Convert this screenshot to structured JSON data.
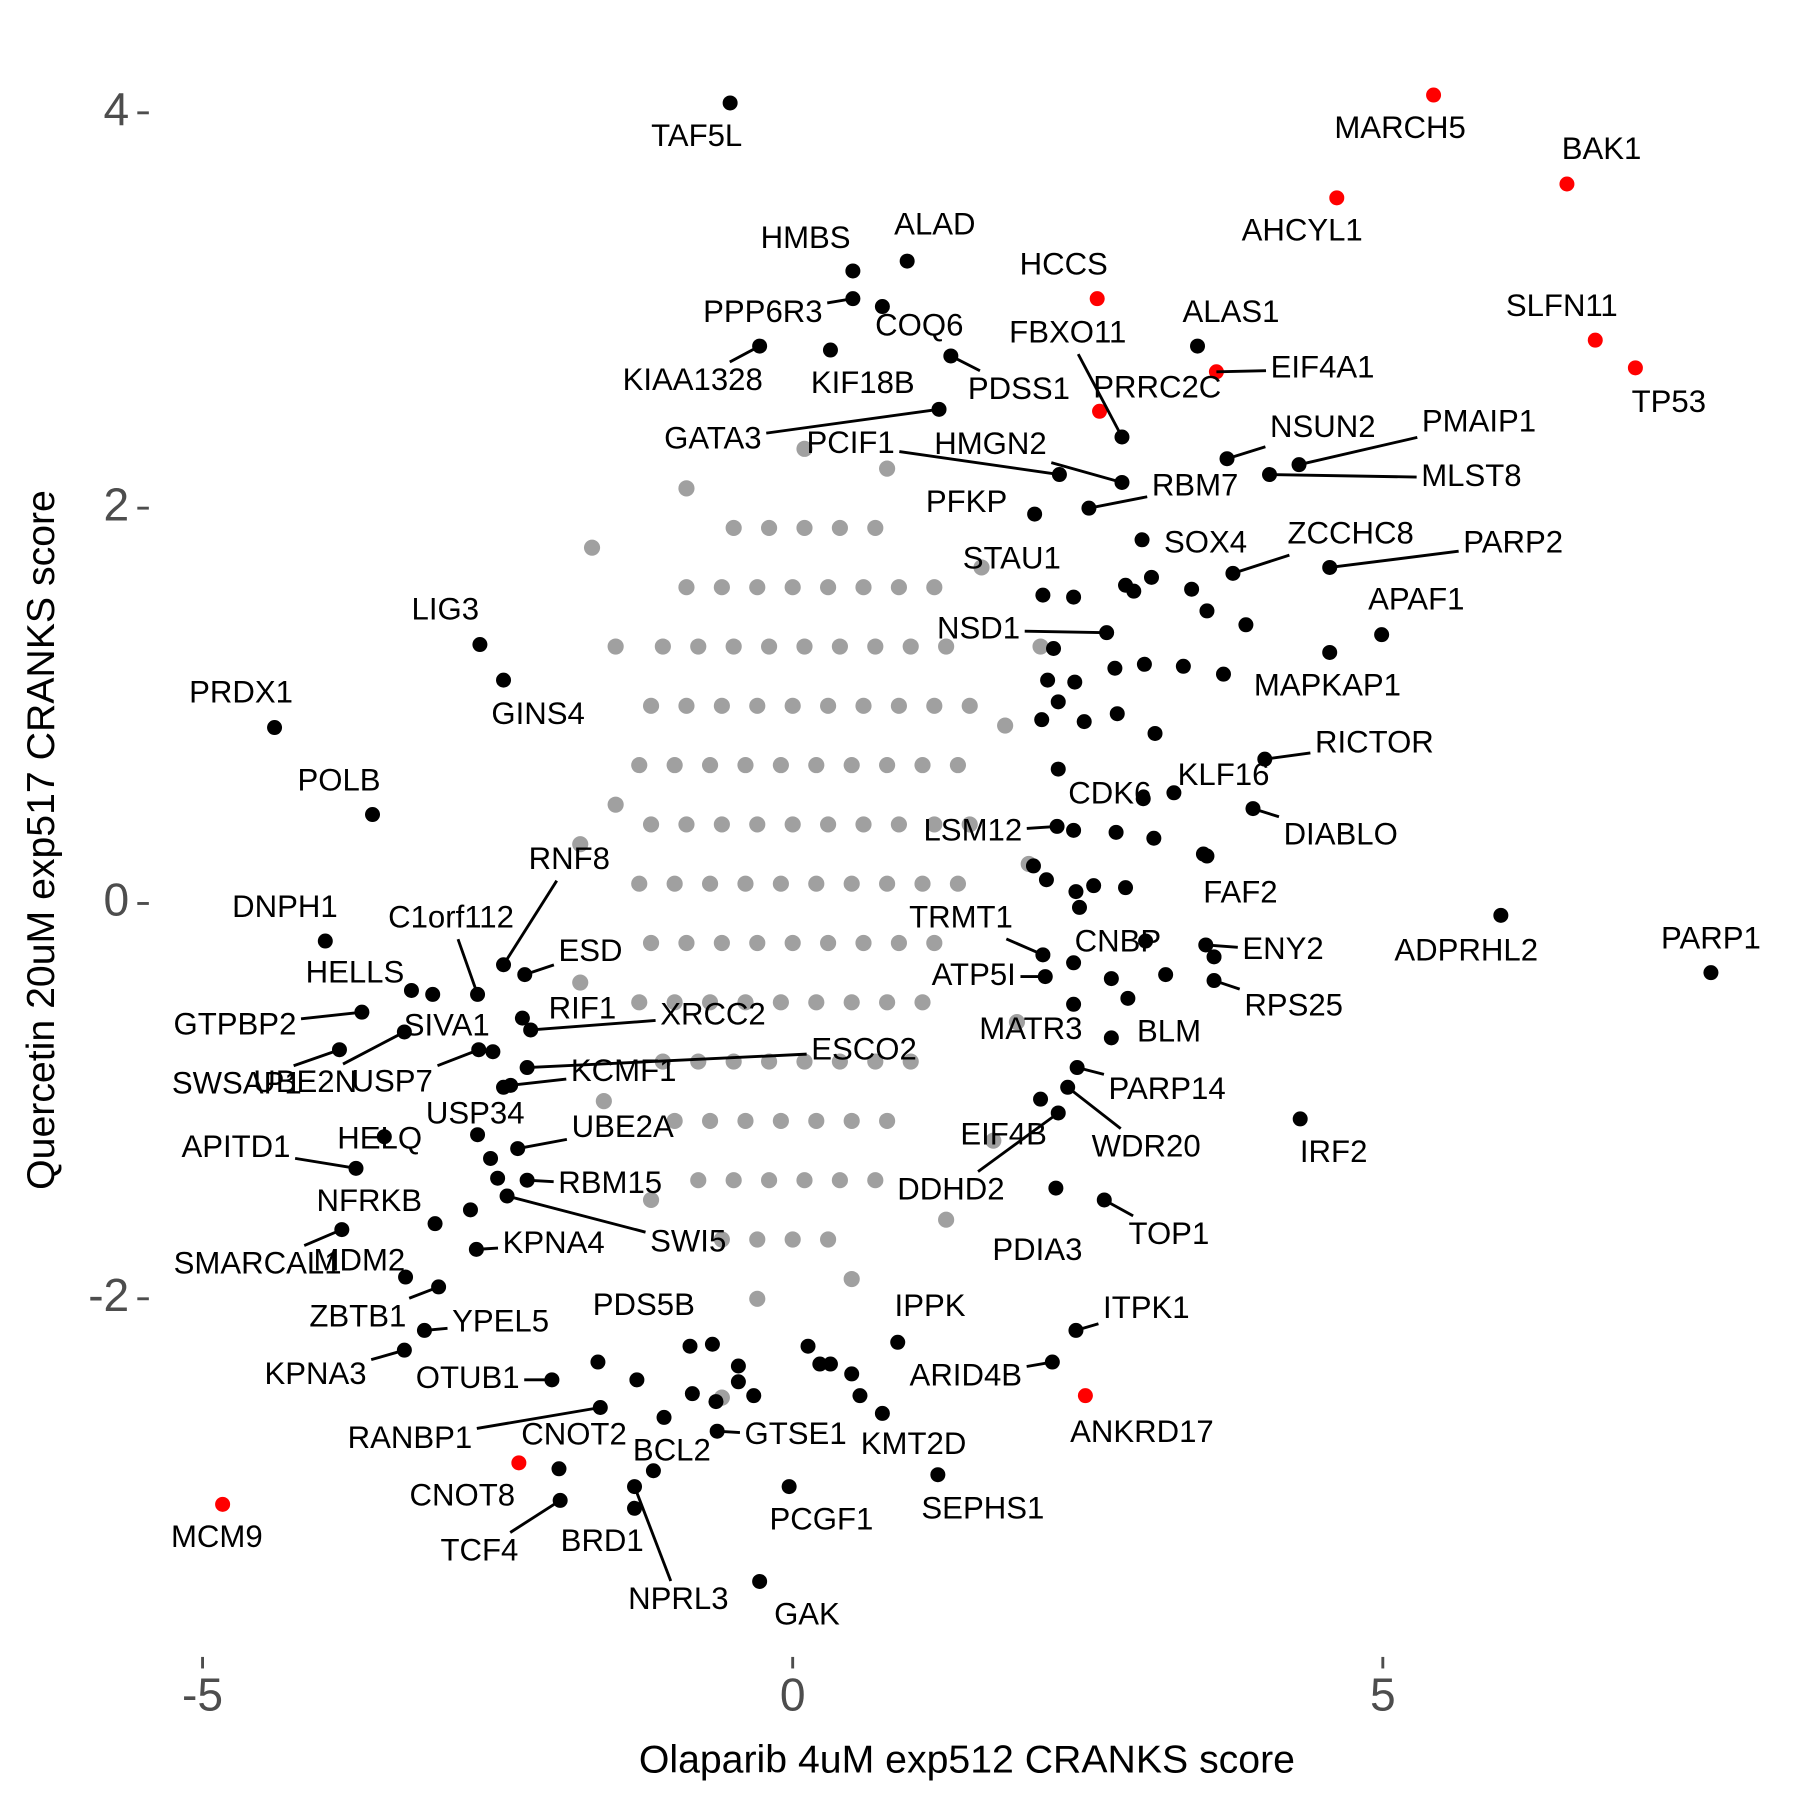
{
  "chart_data": {
    "type": "scatter",
    "xlabel": "Olaparib 4uM exp512 CRANKS score",
    "ylabel": "Quercetin 20uM exp517 CRANKS score",
    "xlim": [
      -5.5,
      8.3
    ],
    "ylim": [
      -3.75,
      4.3
    ],
    "xticks": [
      -5,
      0,
      5
    ],
    "yticks": [
      -2,
      0,
      2,
      4
    ],
    "series": [
      {
        "color": "#a0a0a0",
        "x": [
          -0.5,
          -0.2,
          0.1,
          0.4,
          0.7,
          -0.9,
          -0.6,
          -0.3,
          0,
          0.3,
          0.6,
          0.9,
          1.2,
          -1.1,
          -0.8,
          -0.5,
          -0.2,
          0.1,
          0.4,
          0.7,
          1.0,
          1.3,
          -1.2,
          -0.9,
          -0.6,
          -0.3,
          0,
          0.3,
          0.6,
          0.9,
          1.2,
          1.5,
          -1.3,
          -1.0,
          -0.7,
          -0.4,
          -0.1,
          0.2,
          0.5,
          0.8,
          1.1,
          1.4,
          -1.2,
          -0.9,
          -0.6,
          -0.3,
          0,
          0.3,
          0.6,
          0.9,
          1.2,
          1.5,
          -1.3,
          -1.0,
          -0.7,
          -0.4,
          -0.1,
          0.2,
          0.5,
          0.8,
          1.1,
          1.4,
          -1.2,
          -0.9,
          -0.6,
          -0.3,
          0,
          0.3,
          0.6,
          0.9,
          1.2,
          -1.3,
          -1.0,
          -0.7,
          -0.4,
          -0.1,
          0.2,
          0.5,
          0.8,
          1.1,
          -1.1,
          -0.8,
          -0.5,
          -0.2,
          0.1,
          0.4,
          0.7,
          1.0,
          -1.0,
          -0.7,
          -0.4,
          -0.1,
          0.2,
          0.5,
          0.8,
          -0.8,
          -0.5,
          -0.2,
          0.1,
          0.4,
          0.7,
          -0.6,
          -0.3,
          0,
          0.3,
          -1.7,
          -1.5,
          -1.8,
          -1.6,
          1.8,
          2.0,
          1.9,
          1.6,
          -0.9,
          0.8,
          -0.3,
          0.5,
          -0.6,
          -1.5,
          1.7,
          0.1,
          -1.8,
          2.1,
          -1.2,
          1.3
        ],
        "y": [
          1.9,
          1.9,
          1.9,
          1.9,
          1.9,
          1.6,
          1.6,
          1.6,
          1.6,
          1.6,
          1.6,
          1.6,
          1.6,
          1.3,
          1.3,
          1.3,
          1.3,
          1.3,
          1.3,
          1.3,
          1.3,
          1.3,
          1.0,
          1.0,
          1.0,
          1.0,
          1.0,
          1.0,
          1.0,
          1.0,
          1.0,
          1.0,
          0.7,
          0.7,
          0.7,
          0.7,
          0.7,
          0.7,
          0.7,
          0.7,
          0.7,
          0.7,
          0.4,
          0.4,
          0.4,
          0.4,
          0.4,
          0.4,
          0.4,
          0.4,
          0.4,
          0.4,
          0.1,
          0.1,
          0.1,
          0.1,
          0.1,
          0.1,
          0.1,
          0.1,
          0.1,
          0.1,
          -0.2,
          -0.2,
          -0.2,
          -0.2,
          -0.2,
          -0.2,
          -0.2,
          -0.2,
          -0.2,
          -0.5,
          -0.5,
          -0.5,
          -0.5,
          -0.5,
          -0.5,
          -0.5,
          -0.5,
          -0.5,
          -0.8,
          -0.8,
          -0.8,
          -0.8,
          -0.8,
          -0.8,
          -0.8,
          -0.8,
          -1.1,
          -1.1,
          -1.1,
          -1.1,
          -1.1,
          -1.1,
          -1.1,
          -1.4,
          -1.4,
          -1.4,
          -1.4,
          -1.4,
          -1.4,
          -1.7,
          -1.7,
          -1.7,
          -1.7,
          1.8,
          0.5,
          -0.4,
          -1.0,
          0.9,
          0.2,
          -0.6,
          1.7,
          2.1,
          2.2,
          -2.0,
          -1.9,
          -2.5,
          1.3,
          -1.2,
          2.3,
          0.3,
          1.3,
          -1.5,
          -1.6
        ]
      },
      {
        "color": "#000000",
        "x": [
          2.38,
          2.82,
          2.89,
          3.04,
          3.38,
          3.51,
          3.84,
          2.21,
          2.73,
          2.98,
          3.31,
          3.65,
          2.16,
          2.39,
          2.25,
          2.47,
          2.75,
          3.07,
          2.11,
          2.25,
          2.38,
          2.74,
          3.06,
          2.04,
          2.15,
          2.4,
          2.55,
          2.82,
          3.48,
          2.43,
          2.7,
          2.84,
          3.16,
          3.57,
          2.38,
          -3.05,
          -2.56,
          -2.73,
          -2.5,
          -2.45,
          -0.68,
          -0.46,
          -0.46,
          -0.33,
          0.13,
          0.23,
          0.32,
          0.5,
          0.57,
          -0.85,
          -1.09,
          -0.65,
          -1.65,
          -1.32
        ],
        "y": [
          1.55,
          1.61,
          1.58,
          1.65,
          1.59,
          1.48,
          1.41,
          1.29,
          1.19,
          1.21,
          1.2,
          1.16,
          1.13,
          1.12,
          1.02,
          0.92,
          0.96,
          0.86,
          0.93,
          0.68,
          0.37,
          0.36,
          0.33,
          0.19,
          0.12,
          0.06,
          0.09,
          0.08,
          0.25,
          -0.02,
          -0.38,
          -0.48,
          -0.36,
          -0.27,
          -0.3,
          -0.46,
          -1.29,
          -1.55,
          -1.39,
          -0.93,
          -2.23,
          -2.34,
          -2.42,
          -2.49,
          -2.24,
          -2.33,
          -2.33,
          -2.38,
          -2.49,
          -2.48,
          -2.6,
          -2.52,
          -2.32,
          -2.41
        ]
      },
      {
        "color": "#000000",
        "labels": [
          "TAF5L",
          "HMBS",
          "ALAD",
          "PPP6R3",
          "COQ6",
          "KIAA1328",
          "KIF18B",
          "PDSS1",
          "ALAS1",
          "FBXO11",
          "GATA3",
          "PCIF1",
          "HMGN2",
          "NSUN2",
          "PMAIP1",
          "MLST8",
          "RBM7",
          "PFKP",
          "SOX4",
          "ZCCHC8",
          "PARP2",
          "STAU1",
          "APAF1",
          "NSD1",
          "MAPKAP1",
          "RICTOR",
          "KLF16",
          "DIABLO",
          "CDK6",
          "LSM12",
          "FAF2",
          "ENY2",
          "RPS25",
          "ADPRHL2",
          "PARP1",
          "TRMT1",
          "CNBP",
          "ATP5I",
          "MATR3",
          "BLM",
          "PARP14",
          "WDR20",
          "IRF2",
          "EIF4B",
          "DDHD2",
          "TOP1",
          "PDIA3",
          "ITPK1",
          "IPPK",
          "ARID4B",
          "KMT2D",
          "SEPHS1",
          "GTSE1",
          "PCGF1",
          "GAK",
          "BCL2",
          "NPRL3",
          "BRD1",
          "TCF4",
          "CNOT2",
          "RANBP1",
          "OTUB1",
          "PDS5B",
          "YPEL5",
          "KPNA3",
          "ZBTB1",
          "MDM2",
          "SMARCAL1",
          "NFRKB",
          "KPNA4",
          "SWI5",
          "RBM15",
          "UBE2A",
          "HELQ",
          "APITD1",
          "USP34",
          "USP7",
          "SWSAP1",
          "UBE2N",
          "GTPBP2",
          "SIVA1",
          "HELLS",
          "C1orf112",
          "RNF8",
          "ESD",
          "RIF1",
          "XRCC2",
          "ESCO2",
          "KCMF1",
          "DNPH1",
          "POLB",
          "PRDX1",
          "LIG3",
          "GINS4"
        ],
        "x": [
          -0.53,
          0.51,
          0.97,
          0.51,
          0.76,
          -0.28,
          0.32,
          1.34,
          3.43,
          2.79,
          1.24,
          2.26,
          2.79,
          3.68,
          4.29,
          4.04,
          2.51,
          2.05,
          2.96,
          3.73,
          4.55,
          2.12,
          4.99,
          2.66,
          4.55,
          4.0,
          3.23,
          3.9,
          2.97,
          2.24,
          3.51,
          3.5,
          3.57,
          6.0,
          7.78,
          2.12,
          2.99,
          2.14,
          2.38,
          2.7,
          2.41,
          2.33,
          4.3,
          2.1,
          2.25,
          2.64,
          2.23,
          2.4,
          0.89,
          2.2,
          0.76,
          1.23,
          -0.64,
          -0.03,
          -0.28,
          -1.18,
          -1.34,
          -1.34,
          -1.97,
          -1.98,
          -1.63,
          -2.04,
          -0.87,
          -3.12,
          -3.29,
          -3.0,
          -3.28,
          -3.82,
          -3.03,
          -2.68,
          -2.42,
          -2.25,
          -2.33,
          -3.46,
          -3.7,
          -2.67,
          -2.66,
          -3.84,
          -3.29,
          -3.65,
          -2.54,
          -3.23,
          -2.67,
          -2.45,
          -2.27,
          -2.29,
          -2.22,
          -2.25,
          -2.39,
          -3.96,
          -3.56,
          -4.39,
          -2.65,
          -2.45
        ],
        "y": [
          4.05,
          3.2,
          3.25,
          3.06,
          3.02,
          2.82,
          2.8,
          2.77,
          2.82,
          2.36,
          2.5,
          2.17,
          2.13,
          2.25,
          2.22,
          2.17,
          2.0,
          1.97,
          1.84,
          1.67,
          1.7,
          1.56,
          1.36,
          1.37,
          1.27,
          0.73,
          0.56,
          0.48,
          0.53,
          0.39,
          0.24,
          -0.21,
          -0.39,
          -0.06,
          -0.35,
          -0.26,
          -0.19,
          -0.37,
          -0.51,
          -0.68,
          -0.83,
          -0.93,
          -1.09,
          -0.99,
          -1.06,
          -1.5,
          -1.44,
          -2.16,
          -2.22,
          -2.32,
          -2.58,
          -2.89,
          -2.67,
          -2.95,
          -3.43,
          -2.87,
          -2.95,
          -3.06,
          -3.02,
          -2.86,
          -2.55,
          -2.41,
          -2.24,
          -2.16,
          -2.26,
          -1.94,
          -1.89,
          -1.65,
          -1.62,
          -1.75,
          -1.48,
          -1.4,
          -1.24,
          -1.18,
          -1.34,
          -1.17,
          -0.74,
          -0.74,
          -0.65,
          -0.55,
          -0.75,
          -0.44,
          -0.46,
          -0.31,
          -0.36,
          -0.58,
          -0.64,
          -0.83,
          -0.92,
          -0.19,
          0.45,
          0.89,
          1.31,
          1.13
        ]
      },
      {
        "color": "#ff0000",
        "labels": [
          "MARCH5",
          "BAK1",
          "AHCYL1",
          "HCCS",
          "SLFN11",
          "TP53",
          "EIF4A1",
          "PRRC2C",
          "ANKRD17",
          "CNOT8",
          "MCM9"
        ],
        "x": [
          5.43,
          6.56,
          4.61,
          2.58,
          6.8,
          7.14,
          3.59,
          2.6,
          2.48,
          -2.32,
          -4.83
        ],
        "y": [
          4.09,
          3.64,
          3.57,
          3.06,
          2.85,
          2.71,
          2.69,
          2.49,
          -2.49,
          -2.83,
          -3.04
        ]
      }
    ]
  }
}
